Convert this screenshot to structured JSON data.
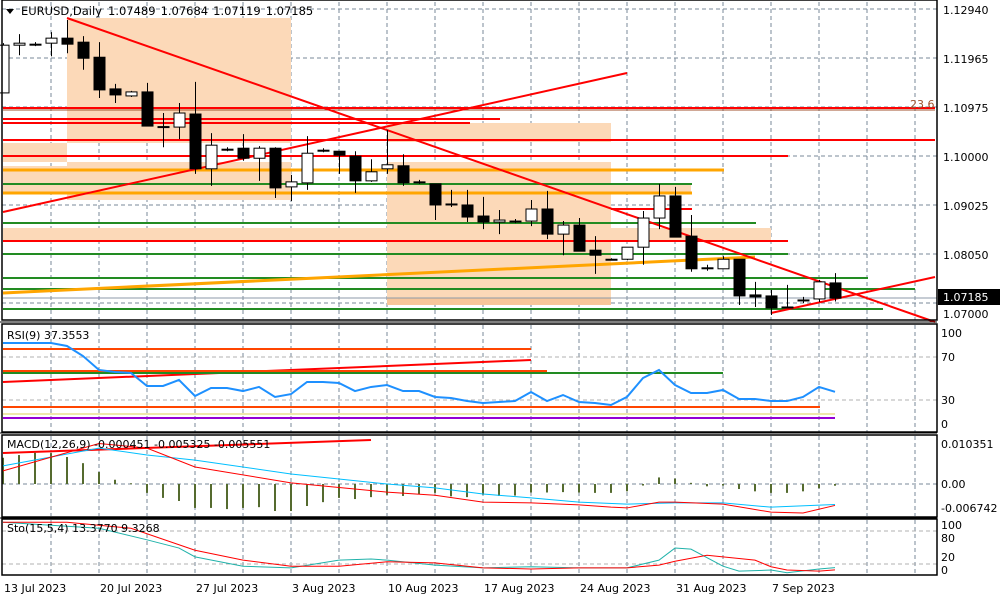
{
  "header": {
    "symbol": "EURUSD,Daily",
    "open": "1.07489",
    "high": "1.07684",
    "low": "1.07119",
    "close": "1.07185",
    "menu_icon": "triangle-down-icon"
  },
  "price_axis": {
    "labels": [
      "1.12940",
      "1.11965",
      "1.10975",
      "1.10000",
      "1.09025",
      "1.08050",
      "1.07000"
    ],
    "current_price": "1.07185",
    "fib_label": "23.6"
  },
  "rsi": {
    "title": "RSI(9) 37.3553",
    "axis_labels": [
      "100",
      "70",
      "30",
      "0"
    ]
  },
  "macd": {
    "title": "MACD(12,26,9) -0.000451 -0.005325 -0.005551",
    "axis_labels": [
      "0.010351",
      "0.00",
      "-0.006742"
    ]
  },
  "sto": {
    "title": "Sto(15,5,4) 13.3770 9.3268",
    "axis_labels": [
      "100",
      "80",
      "20",
      "0"
    ]
  },
  "time_axis": [
    "13 Jul 2023",
    "20 Jul 2023",
    "27 Jul 2023",
    "3 Aug 2023",
    "10 Aug 2023",
    "17 Aug 2023",
    "24 Aug 2023",
    "31 Aug 2023",
    "7 Sep 2023"
  ],
  "colors": {
    "bull": "#ffffff",
    "bear": "#000000",
    "rsi": "#1e90ff",
    "macd_hist": "#556b2f",
    "macd_line": "#00bfff",
    "signal": "#ff0000",
    "sto_main": "#20b2aa",
    "sto_signal": "#ff0000",
    "zone": "#fcd9b8",
    "trend": "#ff0000"
  },
  "chart_data": [
    {
      "type": "candlestick",
      "title": "EURUSD,Daily",
      "ylim": [
        1.0675,
        1.1314
      ],
      "candles": [
        [
          "2023-07-13",
          1.1127,
          1.1226,
          1.1127,
          1.1222
        ],
        [
          "2023-07-14",
          1.1222,
          1.1244,
          1.1202,
          1.1226
        ],
        [
          "2023-07-16",
          1.1224,
          1.1228,
          1.122,
          1.1224
        ],
        [
          "2023-07-17",
          1.1226,
          1.1248,
          1.12,
          1.1236
        ],
        [
          "2023-07-18",
          1.1236,
          1.1272,
          1.1206,
          1.1224
        ],
        [
          "2023-07-19",
          1.1228,
          1.124,
          1.1173,
          1.1196
        ],
        [
          "2023-07-20",
          1.1198,
          1.1228,
          1.1117,
          1.1133
        ],
        [
          "2023-07-21",
          1.1135,
          1.1145,
          1.1107,
          1.1123
        ],
        [
          "2023-07-23",
          1.1121,
          1.1131,
          1.1119,
          1.1129
        ],
        [
          "2023-07-24",
          1.1129,
          1.1147,
          1.1061,
          1.1061
        ],
        [
          "2023-07-25",
          1.106,
          1.1087,
          1.1019,
          1.1059
        ],
        [
          "2023-07-26",
          1.1059,
          1.1107,
          1.1035,
          1.1087
        ],
        [
          "2023-07-27",
          1.1085,
          1.1149,
          1.0966,
          1.0976
        ],
        [
          "2023-07-28",
          1.0976,
          1.1047,
          1.0942,
          1.1023
        ],
        [
          "2023-07-30",
          1.1015,
          1.1019,
          1.1011,
          1.1015
        ],
        [
          "2023-07-31",
          1.1017,
          1.1045,
          1.0992,
          1.0997
        ],
        [
          "2023-08-01",
          1.0997,
          1.1021,
          1.0952,
          1.1017
        ],
        [
          "2023-08-02",
          1.1017,
          1.1019,
          1.0918,
          1.0938
        ],
        [
          "2023-08-03",
          1.094,
          1.0964,
          1.0912,
          1.095
        ],
        [
          "2023-08-04",
          1.0948,
          1.1041,
          1.0934,
          1.1007
        ],
        [
          "2023-08-06",
          1.1013,
          1.1017,
          1.1009,
          1.1013
        ],
        [
          "2023-08-07",
          1.1011,
          1.1011,
          1.0966,
          1.1003
        ],
        [
          "2023-08-08",
          1.1001,
          1.1011,
          1.0928,
          1.0952
        ],
        [
          "2023-08-09",
          1.0952,
          1.0995,
          1.095,
          1.097
        ],
        [
          "2023-08-10",
          1.0976,
          1.1053,
          1.0966,
          1.0984
        ],
        [
          "2023-08-11",
          1.0982,
          1.1005,
          1.0942,
          1.0948
        ],
        [
          "2023-08-13",
          1.095,
          1.0954,
          1.0946,
          1.095
        ],
        [
          "2023-08-14",
          1.0946,
          1.0946,
          1.0874,
          1.0904
        ],
        [
          "2023-08-15",
          1.0906,
          1.0934,
          1.09,
          1.0906
        ],
        [
          "2023-08-16",
          1.0904,
          1.0934,
          1.087,
          1.088
        ],
        [
          "2023-08-17",
          1.0882,
          1.092,
          1.0856,
          1.087
        ],
        [
          "2023-08-18",
          1.087,
          1.0894,
          1.0846,
          1.0874
        ],
        [
          "2023-08-20",
          1.0872,
          1.0876,
          1.0868,
          1.0872
        ],
        [
          "2023-08-21",
          1.0872,
          1.0914,
          1.0862,
          1.0896
        ],
        [
          "2023-08-22",
          1.0896,
          1.0932,
          1.0836,
          1.0846
        ],
        [
          "2023-08-23",
          1.0846,
          1.0872,
          1.0804,
          1.0864
        ],
        [
          "2023-08-24",
          1.0864,
          1.0878,
          1.0812,
          1.0812
        ],
        [
          "2023-08-25",
          1.0814,
          1.0842,
          1.0767,
          1.0804
        ],
        [
          "2023-08-27",
          1.0796,
          1.0798,
          1.0794,
          1.0796
        ],
        [
          "2023-08-28",
          1.0796,
          1.082,
          1.0794,
          1.082
        ],
        [
          "2023-08-29",
          1.082,
          1.0892,
          1.0785,
          1.0878
        ],
        [
          "2023-08-30",
          1.0878,
          1.0946,
          1.0856,
          1.0922
        ],
        [
          "2023-08-31",
          1.0922,
          1.094,
          1.084,
          1.084
        ],
        [
          "2023-09-01",
          1.0842,
          1.0884,
          1.0771,
          1.0777
        ],
        [
          "2023-09-03",
          1.0779,
          1.0785,
          1.0773,
          1.0779
        ],
        [
          "2023-09-04",
          1.0777,
          1.0802,
          1.0777,
          1.0796
        ],
        [
          "2023-09-05",
          1.0796,
          1.0796,
          1.0705,
          1.0723
        ],
        [
          "2023-09-06",
          1.0725,
          1.0751,
          1.0701,
          1.0721
        ],
        [
          "2023-09-07",
          1.0723,
          1.0735,
          1.0685,
          1.0699
        ],
        [
          "2023-09-08",
          1.0699,
          1.0745,
          1.0699,
          1.0701
        ],
        [
          "2023-09-10",
          1.0715,
          1.0721,
          1.0709,
          1.0715
        ],
        [
          "2023-09-11",
          1.0717,
          1.0755,
          1.0711,
          1.0751
        ],
        [
          "2023-09-12",
          1.07489,
          1.07684,
          1.07119,
          1.07185
        ]
      ]
    },
    {
      "type": "line",
      "title": "RSI(9) 37.3553",
      "ylim": [
        0,
        100
      ],
      "levels": [
        30,
        70
      ],
      "values": [
        82.8,
        82.8,
        82.8,
        82.8,
        80,
        70.7,
        57.7,
        55.8,
        54.9,
        42.8,
        42.8,
        48.4,
        33.5,
        40.9,
        40.9,
        38.1,
        41.9,
        32.6,
        35.3,
        46.5,
        46.5,
        45.6,
        38.1,
        41.9,
        43.7,
        38.1,
        38.1,
        32.6,
        31.6,
        28.8,
        27,
        27.9,
        28.8,
        37.2,
        28.8,
        34.4,
        27.9,
        27,
        25.1,
        32.6,
        50.2,
        57.7,
        43.7,
        36.3,
        36.3,
        39.1,
        30.7,
        30.7,
        28.8,
        28.8,
        32.6,
        41.9,
        37.3553
      ]
    },
    {
      "type": "bar",
      "title": "MACD(12,26,9) -0.000451 -0.005325 -0.005551",
      "ylim": [
        -0.006742,
        0.010351
      ],
      "histogram": [
        0.0068,
        0.0075,
        0.0081,
        0.008,
        0.007,
        0.0054,
        0.0031,
        0.0011,
        0.0002,
        -0.0023,
        -0.0036,
        -0.0044,
        -0.0062,
        -0.0062,
        -0.0065,
        -0.0062,
        -0.006,
        -0.007,
        -0.007,
        -0.0057,
        -0.0047,
        -0.0036,
        -0.0039,
        -0.0034,
        -0.0028,
        -0.0031,
        -0.0026,
        -0.0023,
        -0.0032,
        -0.0034,
        -0.0028,
        -0.0031,
        -0.003,
        -0.0022,
        -0.0022,
        -0.0021,
        -0.0022,
        -0.0023,
        -0.0023,
        -0.0019,
        -0.0004,
        0.0017,
        0.0014,
        0.0003,
        -0.0006,
        -0.0004,
        -0.0013,
        -0.0019,
        -0.0023,
        -0.0023,
        -0.0019,
        -0.0011,
        -0.000451
      ],
      "line1": [
        [
          "2023-07-13",
          0.0047
        ],
        [
          "2023-07-20",
          0.0093
        ],
        [
          "2023-07-24",
          0.0075
        ],
        [
          "2023-07-27",
          0.0062
        ],
        [
          "2023-08-03",
          0.0026
        ],
        [
          "2023-08-10",
          0.0
        ],
        [
          "2023-08-14",
          -0.001
        ],
        [
          "2023-08-17",
          -0.0026
        ],
        [
          "2023-08-21",
          -0.0036
        ],
        [
          "2023-08-24",
          -0.0047
        ],
        [
          "2023-08-28",
          -0.0052
        ],
        [
          "2023-08-31",
          -0.0049
        ],
        [
          "2023-09-04",
          -0.0049
        ],
        [
          "2023-09-07",
          -0.006
        ],
        [
          "2023-09-12",
          -0.005325
        ]
      ],
      "line2": [
        [
          "2023-07-13",
          0.0034
        ],
        [
          "2023-07-20",
          0.0105
        ],
        [
          "2023-07-24",
          0.0093
        ],
        [
          "2023-07-27",
          0.0044
        ],
        [
          "2023-08-03",
          0.0003
        ],
        [
          "2023-08-10",
          -0.0021
        ],
        [
          "2023-08-14",
          -0.0029
        ],
        [
          "2023-08-17",
          -0.0047
        ],
        [
          "2023-08-21",
          -0.0049
        ],
        [
          "2023-08-24",
          -0.0054
        ],
        [
          "2023-08-27",
          -0.006
        ],
        [
          "2023-08-28",
          -0.0062
        ],
        [
          "2023-08-30",
          -0.0047
        ],
        [
          "2023-08-31",
          -0.0047
        ],
        [
          "2023-09-04",
          -0.0052
        ],
        [
          "2023-09-07",
          -0.0073
        ],
        [
          "2023-09-10",
          -0.0075
        ],
        [
          "2023-09-12",
          -0.005551
        ]
      ]
    },
    {
      "type": "line",
      "title": "Sto(15,5,4) 13.3770 9.3268",
      "ylim": [
        0,
        100
      ],
      "levels": [
        20,
        80
      ],
      "main": [
        [
          "2023-07-13",
          96
        ],
        [
          "2023-07-20",
          85
        ],
        [
          "2023-07-24",
          64
        ],
        [
          "2023-07-26",
          49
        ],
        [
          "2023-07-27",
          33
        ],
        [
          "2023-07-31",
          16
        ],
        [
          "2023-08-03",
          13
        ],
        [
          "2023-08-07",
          27
        ],
        [
          "2023-08-09",
          29
        ],
        [
          "2023-08-10",
          27
        ],
        [
          "2023-08-14",
          18
        ],
        [
          "2023-08-17",
          13
        ],
        [
          "2023-08-21",
          15
        ],
        [
          "2023-08-24",
          13
        ],
        [
          "2023-08-28",
          13
        ],
        [
          "2023-08-30",
          27
        ],
        [
          "2023-08-31",
          49
        ],
        [
          "2023-09-01",
          47
        ],
        [
          "2023-09-04",
          16
        ],
        [
          "2023-09-05",
          7
        ],
        [
          "2023-09-07",
          9
        ],
        [
          "2023-09-08",
          4
        ],
        [
          "2023-09-11",
          11
        ],
        [
          "2023-09-12",
          13.377
        ]
      ],
      "signal": [
        [
          "2023-07-13",
          96
        ],
        [
          "2023-07-18",
          96
        ],
        [
          "2023-07-23",
          85
        ],
        [
          "2023-07-27",
          45
        ],
        [
          "2023-07-31",
          27
        ],
        [
          "2023-08-03",
          16
        ],
        [
          "2023-08-07",
          16
        ],
        [
          "2023-08-10",
          24
        ],
        [
          "2023-08-14",
          22
        ],
        [
          "2023-08-17",
          13
        ],
        [
          "2023-08-21",
          11
        ],
        [
          "2023-08-24",
          13
        ],
        [
          "2023-08-28",
          13
        ],
        [
          "2023-08-30",
          18
        ],
        [
          "2023-08-31",
          25
        ],
        [
          "2023-09-03",
          36
        ],
        [
          "2023-09-04",
          33
        ],
        [
          "2023-09-06",
          27
        ],
        [
          "2023-09-07",
          15
        ],
        [
          "2023-09-08",
          9
        ],
        [
          "2023-09-11",
          7
        ],
        [
          "2023-09-12",
          9.3268
        ]
      ]
    }
  ]
}
